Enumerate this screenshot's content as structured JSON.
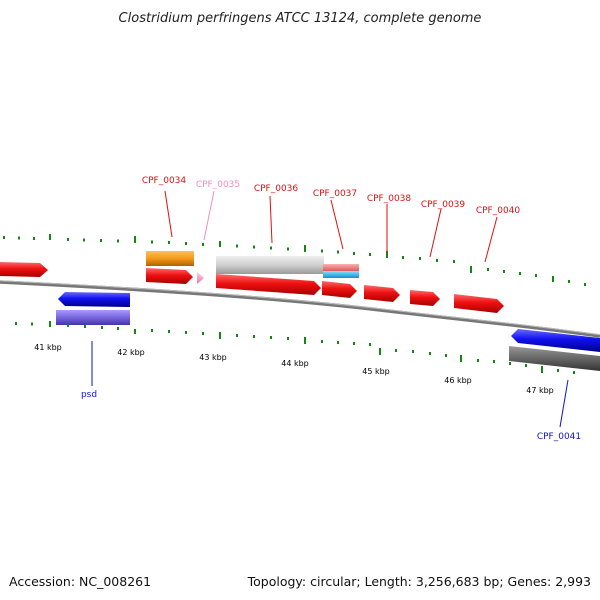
{
  "title": "Clostridium perfringens ATCC 13124, complete genome",
  "footer": {
    "accession": "Accession: NC_008261",
    "stats": "Topology: circular; Length: 3,256,683 bp; Genes: 2,993"
  },
  "scale_labels": [
    "41 kbp",
    "42 kbp",
    "43 kbp",
    "44 kbp",
    "45 kbp",
    "46 kbp",
    "47 kbp"
  ],
  "gene_labels": {
    "cpf_0034": "CPF_0034",
    "cpf_0035": "CPF_0035",
    "cpf_0036": "CPF_0036",
    "cpf_0037": "CPF_0037",
    "cpf_0038": "CPF_0038",
    "cpf_0039": "CPF_0039",
    "cpf_0040": "CPF_0040",
    "psd": "psd",
    "cpf_0041": "CPF_0041"
  },
  "colors": {
    "forward_cds": "#ee1111",
    "reverse_cds": "#1010ee",
    "trna": "#f4a6c8",
    "orange": "#f29a1a",
    "grey": "#cfcfcf",
    "dark_grey": "#666666",
    "violet": "#7766dd",
    "salmon": "#f08080",
    "cyan": "#33bbee",
    "ticks": "#118811",
    "backbone": "#777777"
  }
}
